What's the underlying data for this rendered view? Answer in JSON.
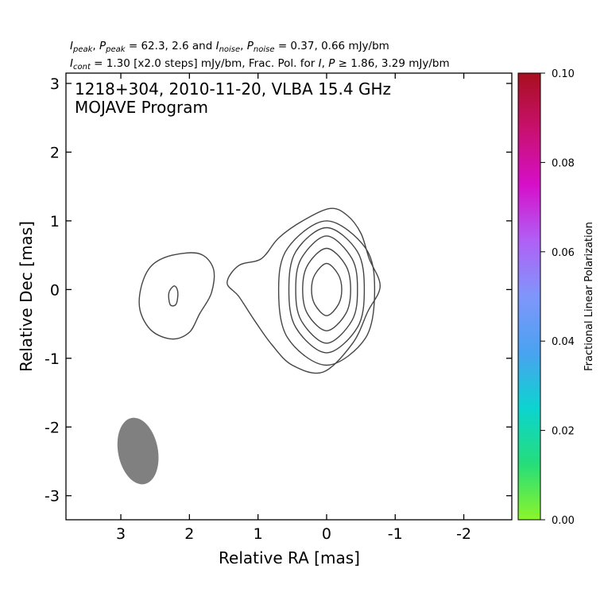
{
  "chart_data": {
    "type": "contour",
    "source": "1218+304",
    "date": "2010-11-20",
    "instrument": "VLBA 15.4 GHz",
    "title_line1": "1218+304, 2010-11-20, VLBA 15.4 GHz",
    "title_line2": "MOJAVE Program",
    "header_line1": "I_peak, P_peak = 62.3, 2.6 and I_noise, P_noise = 0.37, 0.66 mJy/bm",
    "header_line2": "I_cont = 1.30 [x2.0 steps] mJy/bm, Frac. Pol. for I, P ≥ 1.86, 3.29 mJy/bm",
    "header": {
      "l1_a": "I",
      "l1_a_sub": "peak",
      "l1_b": ", ",
      "l1_c": "P",
      "l1_c_sub": "peak",
      "l1_d": " = 62.3, 2.6 and ",
      "l1_e": "I",
      "l1_e_sub": "noise",
      "l1_f": ", ",
      "l1_g": "P",
      "l1_g_sub": "noise",
      "l1_h": " = 0.37, 0.66 mJy/bm",
      "l2_a": "I",
      "l2_a_sub": "cont",
      "l2_b": " = 1.30 [x2.0 steps] mJy/bm, Frac. Pol. for ",
      "l2_c": "I",
      "l2_d": ", ",
      "l2_e": "P",
      "l2_f": " ≥ 1.86, 3.29 mJy/bm"
    },
    "xlabel": "Relative RA [mas]",
    "ylabel": "Relative Dec [mas]",
    "xlim": [
      3.8,
      -2.7
    ],
    "ylim": [
      -3.35,
      3.15
    ],
    "xticks": [
      3,
      2,
      1,
      0,
      -1,
      -2
    ],
    "xtick_labels": [
      "3",
      "2",
      "1",
      "0",
      "-1",
      "-2"
    ],
    "yticks": [
      3,
      2,
      1,
      0,
      -1,
      -2,
      -3
    ],
    "ytick_labels": [
      "3",
      "2",
      "1",
      "0",
      "-1",
      "-2",
      "-3"
    ],
    "peak_mJy_per_beam": 62.3,
    "lowest_contour_mJy_per_beam": 1.3,
    "contour_step_factor": 2.0,
    "contour_color": "#444444",
    "core_contours": [
      {
        "level": 1,
        "points": [
          [
            -0.05,
            1.18
          ],
          [
            -0.3,
            1.08
          ],
          [
            -0.5,
            0.82
          ],
          [
            -0.62,
            0.45
          ],
          [
            -0.78,
            0.05
          ],
          [
            -0.6,
            -0.32
          ],
          [
            -0.38,
            -0.78
          ],
          [
            0.05,
            -1.2
          ],
          [
            0.5,
            -1.1
          ],
          [
            0.8,
            -0.8
          ],
          [
            1.05,
            -0.45
          ],
          [
            1.28,
            -0.1
          ],
          [
            1.45,
            0.1
          ],
          [
            1.28,
            0.35
          ],
          [
            0.95,
            0.45
          ],
          [
            0.7,
            0.75
          ],
          [
            0.35,
            1.0
          ]
        ]
      },
      {
        "level": 2,
        "points": [
          [
            -0.7,
            0
          ],
          [
            -0.57,
            0.6
          ],
          [
            0,
            1.0
          ],
          [
            0.57,
            0.6
          ],
          [
            0.7,
            0
          ],
          [
            0.57,
            -0.7
          ],
          [
            0,
            -1.1
          ],
          [
            -0.57,
            -0.7
          ]
        ]
      },
      {
        "level": 3,
        "points": [
          [
            -0.55,
            0
          ],
          [
            -0.45,
            0.55
          ],
          [
            0,
            0.9
          ],
          [
            0.45,
            0.55
          ],
          [
            0.55,
            0
          ],
          [
            0.45,
            -0.55
          ],
          [
            0,
            -0.92
          ],
          [
            -0.45,
            -0.55
          ]
        ]
      },
      {
        "level": 4,
        "points": [
          [
            -0.45,
            0
          ],
          [
            -0.37,
            0.45
          ],
          [
            0,
            0.78
          ],
          [
            0.37,
            0.45
          ],
          [
            0.45,
            0
          ],
          [
            0.37,
            -0.45
          ],
          [
            0,
            -0.78
          ],
          [
            -0.37,
            -0.45
          ]
        ]
      },
      {
        "level": 5,
        "points": [
          [
            -0.35,
            0
          ],
          [
            -0.28,
            0.35
          ],
          [
            0,
            0.6
          ],
          [
            0.28,
            0.35
          ],
          [
            0.35,
            0
          ],
          [
            0.28,
            -0.35
          ],
          [
            0,
            -0.6
          ],
          [
            -0.28,
            -0.35
          ]
        ]
      },
      {
        "level": 6,
        "points": [
          [
            -0.22,
            0
          ],
          [
            -0.17,
            0.22
          ],
          [
            0,
            0.38
          ],
          [
            0.17,
            0.22
          ],
          [
            0.22,
            0
          ],
          [
            0.17,
            -0.22
          ],
          [
            0,
            -0.38
          ],
          [
            -0.17,
            -0.22
          ]
        ]
      }
    ],
    "jet_contours": [
      {
        "level": 1,
        "points": [
          [
            2.7,
            0.05
          ],
          [
            2.55,
            0.35
          ],
          [
            2.25,
            0.5
          ],
          [
            1.85,
            0.52
          ],
          [
            1.65,
            0.3
          ],
          [
            1.68,
            -0.05
          ],
          [
            1.85,
            -0.35
          ],
          [
            2.0,
            -0.62
          ],
          [
            2.25,
            -0.72
          ],
          [
            2.55,
            -0.6
          ],
          [
            2.72,
            -0.3
          ]
        ]
      },
      {
        "level": 2,
        "points": [
          [
            2.3,
            -0.05
          ],
          [
            2.23,
            0.05
          ],
          [
            2.18,
            0.01
          ],
          [
            2.17,
            -0.1
          ],
          [
            2.2,
            -0.22
          ],
          [
            2.28,
            -0.22
          ]
        ]
      }
    ],
    "beam": {
      "x": 2.75,
      "y": -2.35,
      "major_mas": 0.98,
      "minor_mas": 0.58,
      "pa_deg": -11,
      "color": "#808080"
    },
    "colorbar": {
      "label": "Fractional Linear Polarization",
      "range": [
        0.0,
        0.1
      ],
      "ticks": [
        0.0,
        0.02,
        0.04,
        0.06,
        0.08,
        0.1
      ],
      "tick_labels": [
        "0.00",
        "0.02",
        "0.04",
        "0.06",
        "0.08",
        "0.10"
      ],
      "colors": [
        "#8cf52a",
        "#25dd7a",
        "#0cd4d0",
        "#4aa2f0",
        "#7f96fb",
        "#b060f5",
        "#d60fc9",
        "#c8106e",
        "#a80f1e"
      ]
    }
  }
}
